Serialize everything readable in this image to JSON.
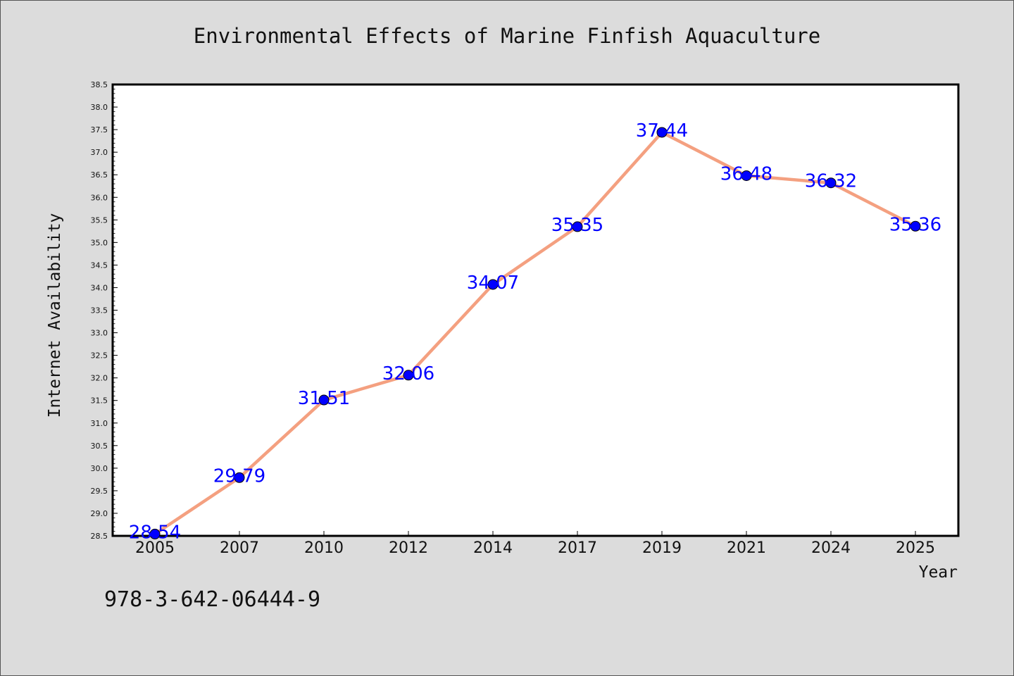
{
  "chart_data": {
    "type": "line",
    "title": "Environmental Effects of Marine Finfish Aquaculture",
    "xlabel": "Year",
    "ylabel": "Internet Availability",
    "categories": [
      "2005",
      "2007",
      "2010",
      "2012",
      "2014",
      "2017",
      "2019",
      "2021",
      "2024",
      "2025"
    ],
    "series": [
      {
        "values": [
          28.54,
          29.79,
          31.51,
          32.06,
          34.07,
          35.35,
          37.44,
          36.48,
          36.32,
          35.36
        ],
        "labels": [
          "28.54",
          "29.79",
          "31.51",
          "32.06",
          "34.07",
          "35.35",
          "37.44",
          "36.48",
          "36.32",
          "35.36"
        ],
        "line_color": "#f4a080",
        "marker_color": "#0000ff"
      }
    ],
    "ylim": [
      28.5,
      38.5
    ],
    "yticks": [
      "28.5",
      "29.0",
      "29.5",
      "30.0",
      "30.5",
      "31.0",
      "31.5",
      "32.0",
      "32.5",
      "33.0",
      "33.5",
      "34.0",
      "34.5",
      "35.0",
      "35.5",
      "36.0",
      "36.5",
      "37.0",
      "37.5",
      "38.0",
      "38.5"
    ],
    "grid": false,
    "legend": "none"
  },
  "footer": {
    "isbn": "978-3-642-06444-9"
  },
  "colors": {
    "background": "#dcdcdc",
    "plot_background": "#ffffff",
    "line": "#f4a080",
    "marker": "#0000ff",
    "label": "#0000ff"
  }
}
